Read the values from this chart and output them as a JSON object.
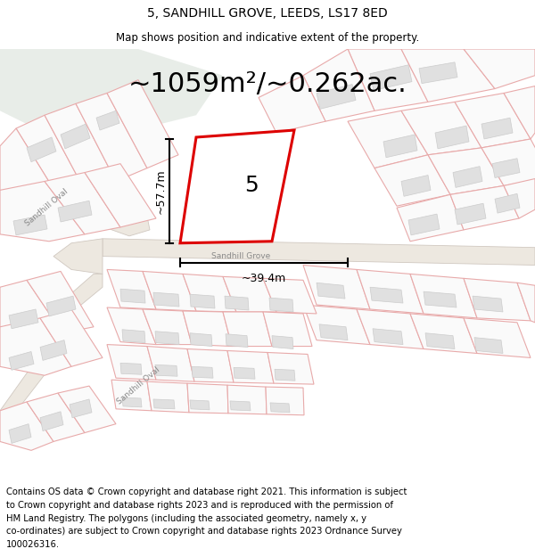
{
  "title": "5, SANDHILL GROVE, LEEDS, LS17 8ED",
  "subtitle": "Map shows position and indicative extent of the property.",
  "area_text": "~1059m²/~0.262ac.",
  "label_number": "5",
  "dim_height": "~57.7m",
  "dim_width": "~39.4m",
  "road_label_oval1": "Sandhill Oval",
  "road_label_grove": "Sandhill Grove",
  "road_label_oval2": "Sandhill Oval",
  "footer_lines": [
    "Contains OS data © Crown copyright and database right 2021. This information is subject",
    "to Crown copyright and database rights 2023 and is reproduced with the permission of",
    "HM Land Registry. The polygons (including the associated geometry, namely x, y",
    "co-ordinates) are subject to Crown copyright and database rights 2023 Ordnance Survey",
    "100026316."
  ],
  "map_bg": "#f8f8f6",
  "green_color": "#e8ede8",
  "plot_fill": "#ffffff",
  "plot_edge": "#dd0000",
  "building_fill": "#e0e0e0",
  "building_edge": "#cccccc",
  "road_fill": "#ede8e0",
  "road_edge": "#d0c8c0",
  "prop_line_color": "#e8aaaa",
  "prop_line_lw": 0.8,
  "dim_line_color": "#000000",
  "title_fontsize": 10,
  "subtitle_fontsize": 8.5,
  "area_fontsize": 22,
  "label_fontsize": 18,
  "dim_fontsize": 9,
  "road_fontsize": 6.5,
  "footer_fontsize": 7.2
}
